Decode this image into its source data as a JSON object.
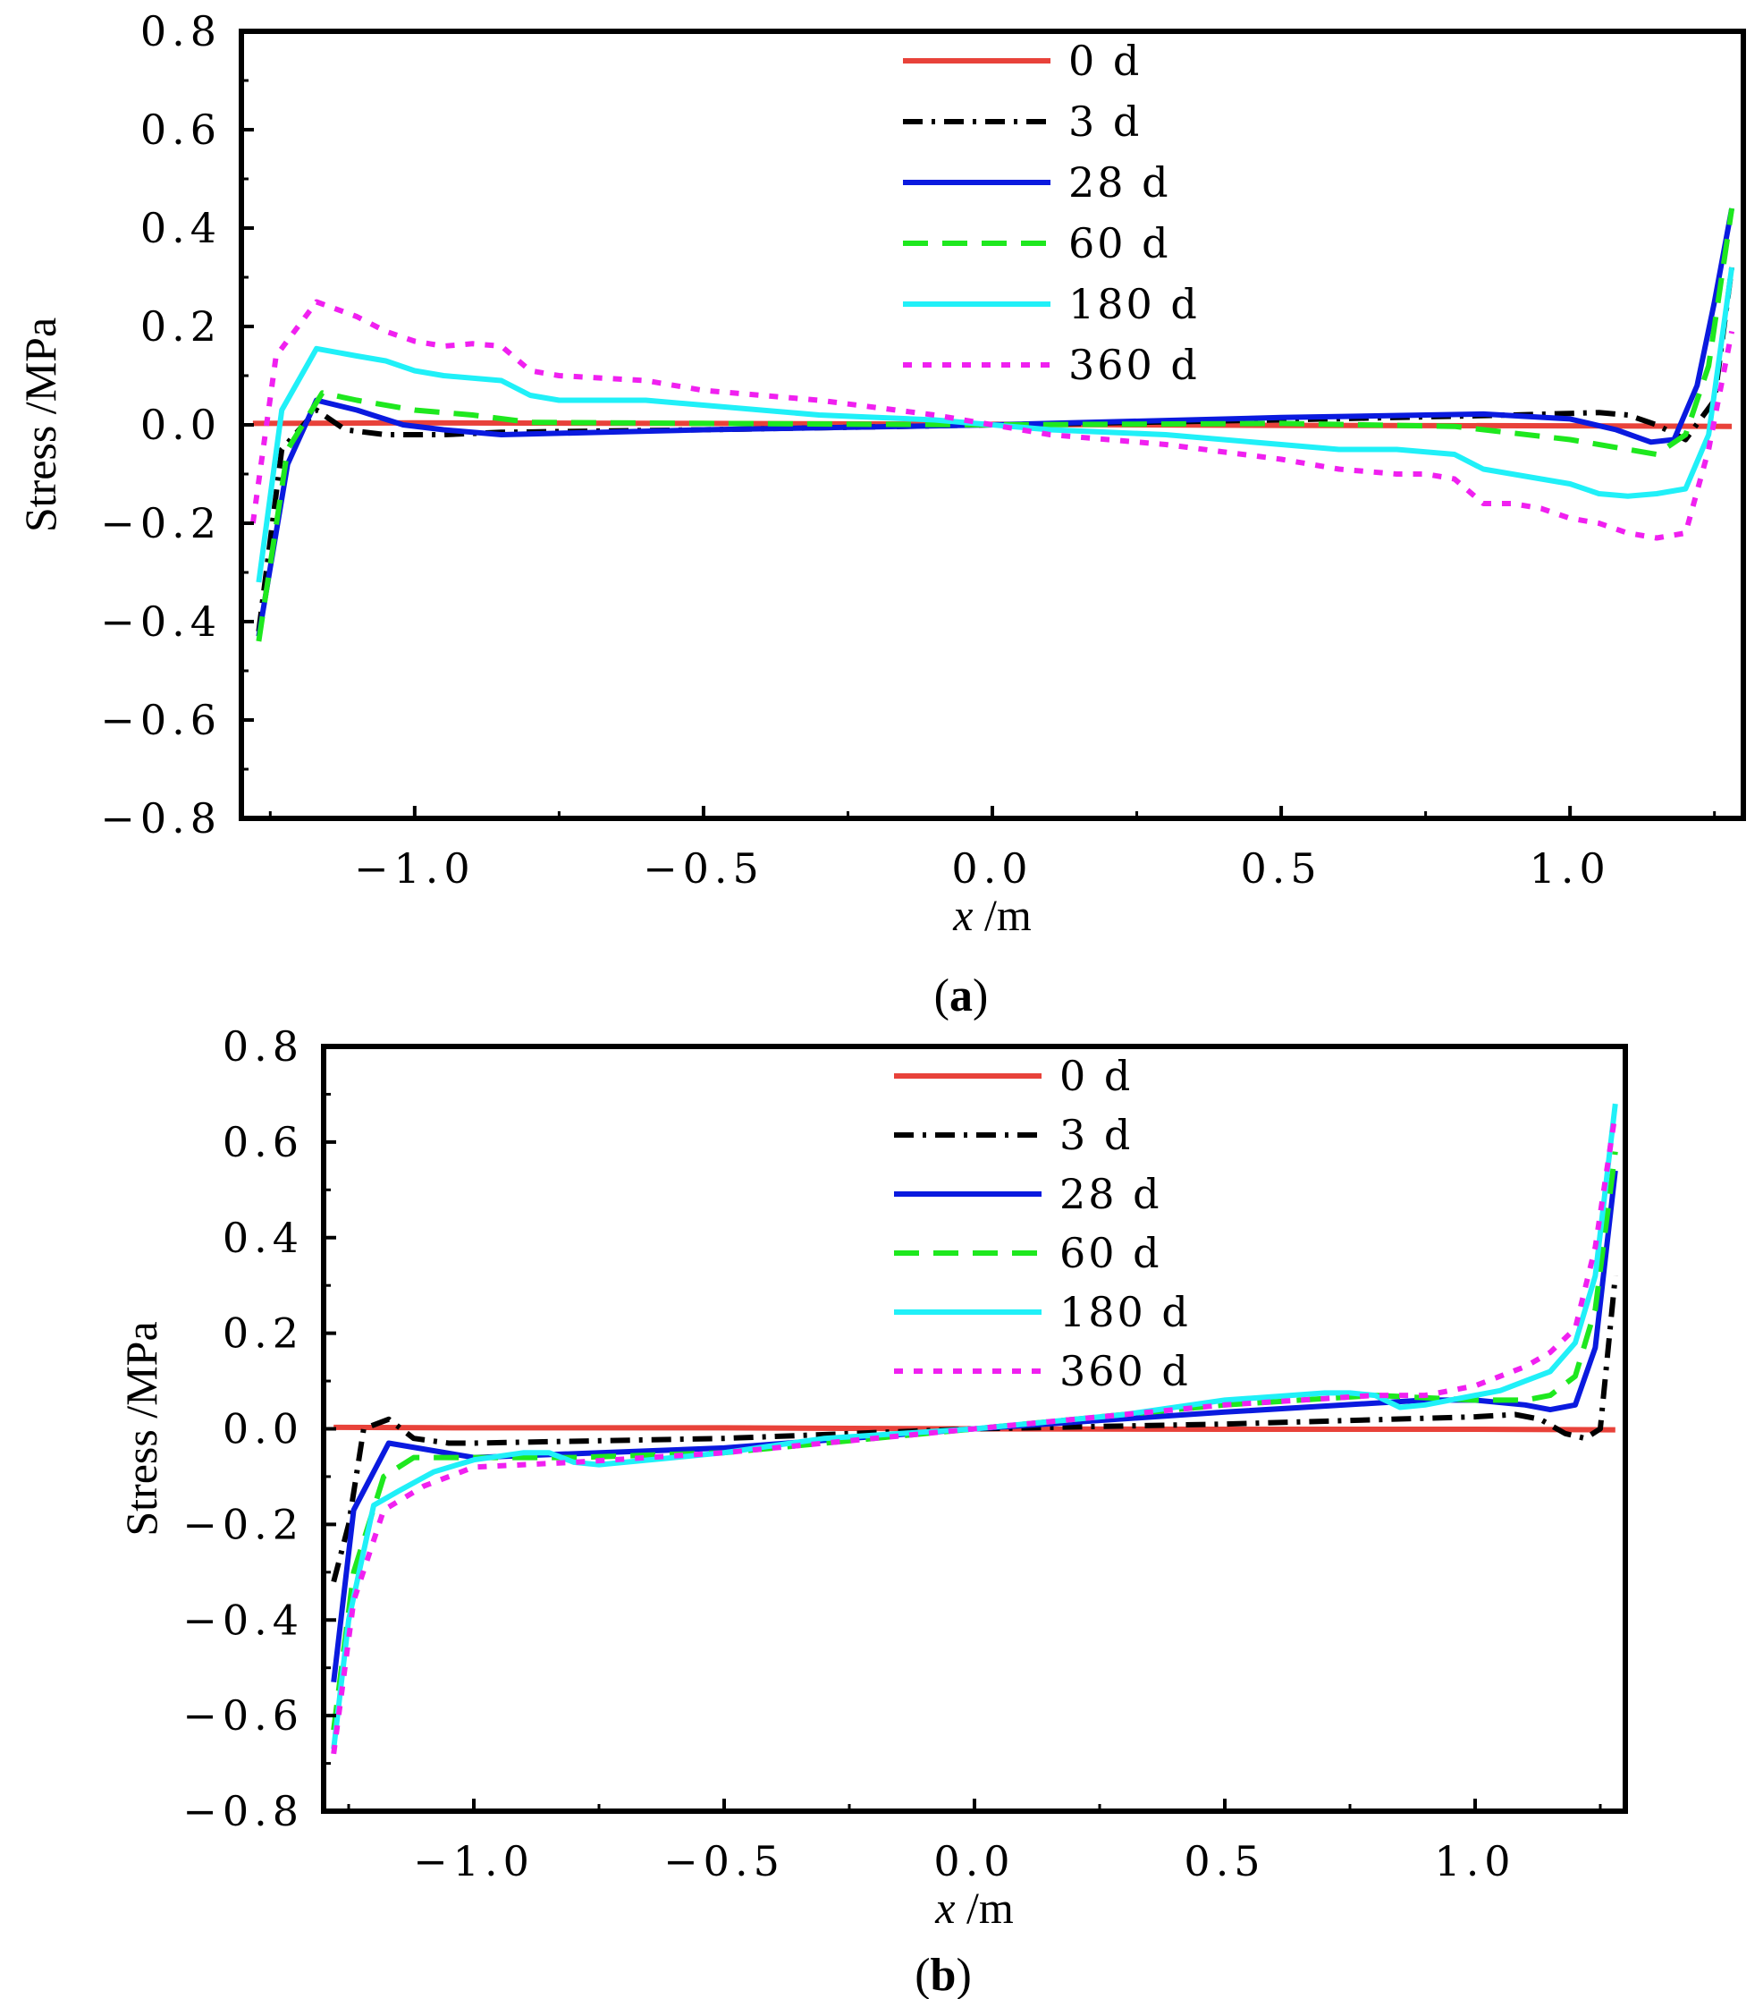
{
  "chart_data": [
    {
      "type": "line",
      "panel_label": "(a)",
      "panel_letter": "a",
      "xlabel_var": "x",
      "xlabel_unit": " /m",
      "ylabel": "Stress /MPa",
      "xlim": [
        -1.3,
        1.3
      ],
      "ylim": [
        -0.8,
        0.8
      ],
      "xticks": [
        -1.0,
        -0.5,
        0.0,
        0.5,
        1.0
      ],
      "xtick_labels": [
        "−1.0",
        "−0.5",
        "0.0",
        "0.5",
        "1.0"
      ],
      "yticks": [
        0.8,
        0.6,
        0.4,
        0.2,
        0.0,
        -0.2,
        -0.4,
        -0.6,
        -0.8
      ],
      "ytick_labels": [
        "0.8",
        "0.6",
        "0.4",
        "0.2",
        "0.0",
        "−0.2",
        "−0.4",
        "−0.6",
        "−0.8"
      ],
      "legend_position": "top-center",
      "series": [
        {
          "name": "0 d",
          "color": "#e8423a",
          "dash": "solid",
          "x": [
            -1.28,
            -1.0,
            -0.5,
            0.0,
            0.5,
            1.0,
            1.28
          ],
          "y": [
            0.003,
            0.004,
            0.003,
            0.001,
            -0.001,
            -0.002,
            -0.003
          ]
        },
        {
          "name": "3 d",
          "color": "#000000",
          "dash": "dashdot",
          "x": [
            -1.27,
            -1.23,
            -1.17,
            -1.12,
            -1.05,
            -0.95,
            -0.85,
            -0.5,
            0.0,
            0.5,
            0.9,
            1.05,
            1.1,
            1.15,
            1.2,
            1.25,
            1.28
          ],
          "y": [
            -0.42,
            -0.05,
            0.03,
            -0.01,
            -0.02,
            -0.02,
            -0.015,
            -0.01,
            0.0,
            0.01,
            0.02,
            0.025,
            0.02,
            0.0,
            -0.03,
            0.05,
            0.32
          ]
        },
        {
          "name": "28 d",
          "color": "#0a1adf",
          "dash": "solid",
          "x": [
            -1.27,
            -1.22,
            -1.17,
            -1.1,
            -1.02,
            -0.95,
            -0.85,
            -0.5,
            0.0,
            0.5,
            0.85,
            1.0,
            1.08,
            1.14,
            1.18,
            1.22,
            1.25,
            1.28
          ],
          "y": [
            -0.43,
            -0.08,
            0.05,
            0.03,
            0.0,
            -0.01,
            -0.02,
            -0.01,
            0.0,
            0.015,
            0.022,
            0.012,
            -0.01,
            -0.035,
            -0.03,
            0.08,
            0.25,
            0.44
          ]
        },
        {
          "name": "60 d",
          "color": "#1ee81e",
          "dash": "dashed",
          "x": [
            -1.27,
            -1.22,
            -1.16,
            -1.1,
            -1.0,
            -0.9,
            -0.8,
            -0.5,
            0.0,
            0.5,
            0.8,
            1.0,
            1.1,
            1.15,
            1.2,
            1.24,
            1.28
          ],
          "y": [
            -0.44,
            -0.05,
            0.065,
            0.05,
            0.03,
            0.02,
            0.005,
            0.003,
            0.0,
            0.003,
            -0.003,
            -0.03,
            -0.05,
            -0.06,
            -0.02,
            0.12,
            0.44
          ]
        },
        {
          "name": "180 d",
          "color": "#20f0f8",
          "dash": "solid",
          "x": [
            -1.27,
            -1.23,
            -1.17,
            -1.1,
            -1.05,
            -1.0,
            -0.95,
            -0.85,
            -0.8,
            -0.75,
            -0.6,
            -0.5,
            -0.3,
            -0.1,
            0.0,
            0.1,
            0.3,
            0.5,
            0.6,
            0.7,
            0.8,
            0.85,
            0.95,
            1.0,
            1.05,
            1.1,
            1.15,
            1.2,
            1.24,
            1.28
          ],
          "y": [
            -0.32,
            0.03,
            0.155,
            0.14,
            0.13,
            0.11,
            0.1,
            0.09,
            0.06,
            0.05,
            0.05,
            0.04,
            0.02,
            0.01,
            0.0,
            -0.01,
            -0.02,
            -0.04,
            -0.05,
            -0.05,
            -0.06,
            -0.09,
            -0.11,
            -0.12,
            -0.14,
            -0.145,
            -0.14,
            -0.13,
            -0.02,
            0.32
          ]
        },
        {
          "name": "360 d",
          "color": "#f020f0",
          "dash": "dotted",
          "x": [
            -1.28,
            -1.24,
            -1.17,
            -1.1,
            -1.05,
            -1.0,
            -0.95,
            -0.9,
            -0.85,
            -0.8,
            -0.75,
            -0.6,
            -0.5,
            -0.3,
            -0.1,
            0.0,
            0.1,
            0.3,
            0.5,
            0.6,
            0.7,
            0.75,
            0.8,
            0.85,
            0.9,
            0.95,
            1.0,
            1.05,
            1.1,
            1.15,
            1.2,
            1.24,
            1.28
          ],
          "y": [
            -0.2,
            0.14,
            0.25,
            0.22,
            0.19,
            0.17,
            0.16,
            0.165,
            0.16,
            0.11,
            0.1,
            0.09,
            0.07,
            0.05,
            0.02,
            0.0,
            -0.02,
            -0.04,
            -0.07,
            -0.09,
            -0.1,
            -0.1,
            -0.11,
            -0.16,
            -0.16,
            -0.17,
            -0.19,
            -0.2,
            -0.22,
            -0.23,
            -0.22,
            -0.05,
            0.19
          ]
        }
      ]
    },
    {
      "type": "line",
      "panel_label": "(b)",
      "panel_letter": "b",
      "xlabel_var": "x",
      "xlabel_unit": " /m",
      "ylabel": "Stress /MPa",
      "xlim": [
        -1.3,
        1.3
      ],
      "ylim": [
        -0.8,
        0.8
      ],
      "xticks": [
        -1.0,
        -0.5,
        0.0,
        0.5,
        1.0
      ],
      "xtick_labels": [
        "−1.0",
        "−0.5",
        "0.0",
        "0.5",
        "1.0"
      ],
      "yticks": [
        0.8,
        0.6,
        0.4,
        0.2,
        0.0,
        -0.2,
        -0.4,
        -0.6,
        -0.8
      ],
      "ytick_labels": [
        "0.8",
        "0.6",
        "0.4",
        "0.2",
        "0.0",
        "−0.2",
        "−0.4",
        "−0.6",
        "−0.8"
      ],
      "legend_position": "top-center",
      "series": [
        {
          "name": "0 d",
          "color": "#e8423a",
          "dash": "solid",
          "x": [
            -1.28,
            -1.0,
            -0.5,
            0.0,
            0.5,
            1.0,
            1.28
          ],
          "y": [
            0.003,
            0.002,
            0.002,
            0.0,
            -0.001,
            -0.001,
            -0.002
          ]
        },
        {
          "name": "3 d",
          "color": "#000000",
          "dash": "dashdot",
          "x": [
            -1.28,
            -1.25,
            -1.22,
            -1.17,
            -1.12,
            -1.05,
            -1.0,
            -0.5,
            0.0,
            0.5,
            1.0,
            1.08,
            1.13,
            1.18,
            1.22,
            1.25,
            1.28
          ],
          "y": [
            -0.32,
            -0.2,
            0.0,
            0.02,
            -0.02,
            -0.03,
            -0.03,
            -0.02,
            0.0,
            0.01,
            0.025,
            0.03,
            0.02,
            -0.01,
            -0.02,
            0.0,
            0.32
          ]
        },
        {
          "name": "28 d",
          "color": "#0a1adf",
          "dash": "solid",
          "x": [
            -1.28,
            -1.24,
            -1.17,
            -1.0,
            -0.5,
            0.0,
            0.5,
            0.9,
            1.0,
            1.1,
            1.15,
            1.2,
            1.24,
            1.28
          ],
          "y": [
            -0.53,
            -0.17,
            -0.03,
            -0.06,
            -0.04,
            0.0,
            0.035,
            0.06,
            0.06,
            0.05,
            0.04,
            0.05,
            0.17,
            0.54
          ]
        },
        {
          "name": "60 d",
          "color": "#1ee81e",
          "dash": "dashed",
          "x": [
            -1.28,
            -1.24,
            -1.18,
            -1.12,
            -1.0,
            -0.8,
            -0.5,
            0.0,
            0.5,
            0.8,
            1.0,
            1.1,
            1.15,
            1.2,
            1.24,
            1.28
          ],
          "y": [
            -0.63,
            -0.3,
            -0.1,
            -0.06,
            -0.06,
            -0.06,
            -0.05,
            0.0,
            0.05,
            0.07,
            0.06,
            0.06,
            0.07,
            0.11,
            0.25,
            0.58
          ]
        },
        {
          "name": "180 d",
          "color": "#20f0f8",
          "dash": "solid",
          "x": [
            -1.28,
            -1.25,
            -1.2,
            -1.15,
            -1.08,
            -1.0,
            -0.9,
            -0.85,
            -0.8,
            -0.75,
            -0.6,
            -0.5,
            -0.3,
            0.0,
            0.3,
            0.5,
            0.7,
            0.75,
            0.8,
            0.85,
            0.9,
            1.0,
            1.05,
            1.1,
            1.15,
            1.2,
            1.24,
            1.28
          ],
          "y": [
            -0.67,
            -0.4,
            -0.16,
            -0.13,
            -0.09,
            -0.065,
            -0.05,
            -0.05,
            -0.07,
            -0.075,
            -0.06,
            -0.05,
            -0.02,
            0.0,
            0.03,
            0.06,
            0.075,
            0.075,
            0.07,
            0.045,
            0.05,
            0.07,
            0.08,
            0.1,
            0.12,
            0.18,
            0.32,
            0.68
          ]
        },
        {
          "name": "360 d",
          "color": "#f020f0",
          "dash": "dotted",
          "x": [
            -1.28,
            -1.24,
            -1.18,
            -1.1,
            -1.0,
            -0.8,
            -0.5,
            0.0,
            0.5,
            0.8,
            0.9,
            1.0,
            1.05,
            1.1,
            1.15,
            1.2,
            1.24,
            1.28
          ],
          "y": [
            -0.68,
            -0.36,
            -0.17,
            -0.12,
            -0.08,
            -0.07,
            -0.05,
            0.0,
            0.05,
            0.07,
            0.07,
            0.09,
            0.11,
            0.13,
            0.16,
            0.21,
            0.38,
            0.66
          ]
        }
      ]
    }
  ]
}
